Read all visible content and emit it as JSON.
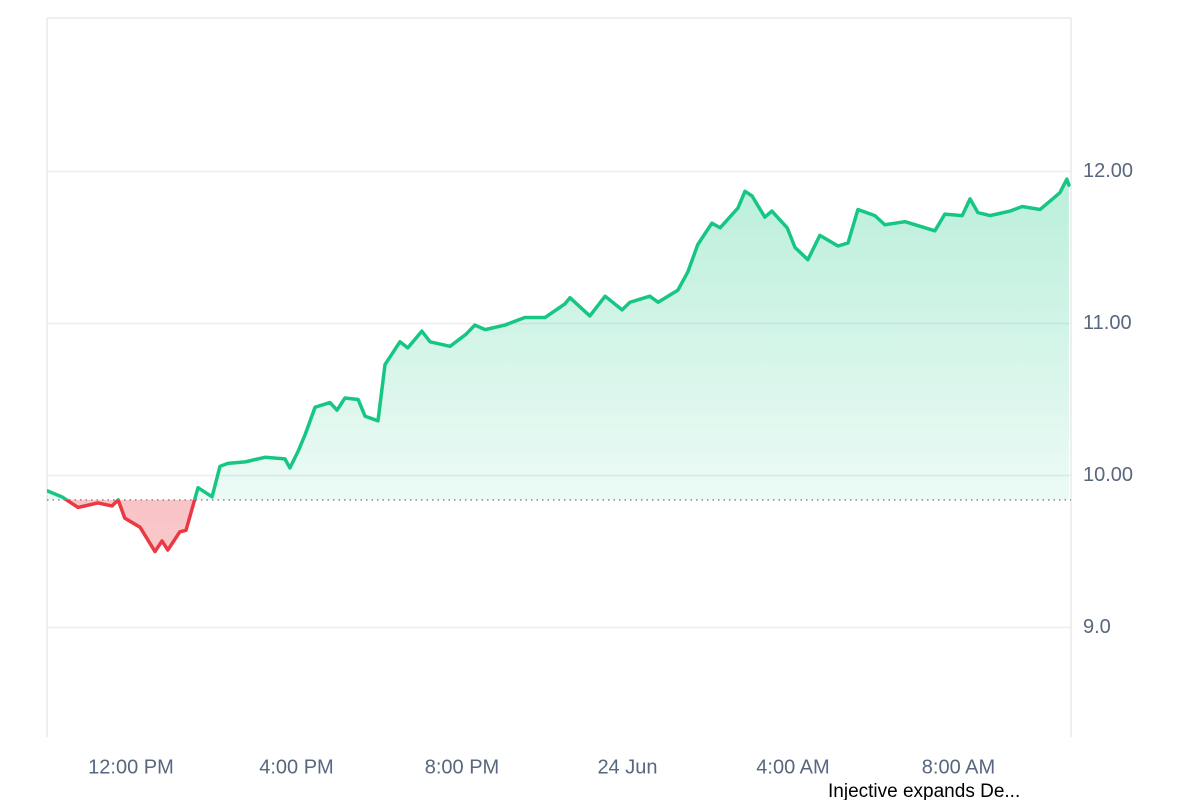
{
  "chart_data": {
    "type": "line",
    "x": [
      9.97,
      10.33,
      10.72,
      11.2,
      11.54,
      11.69,
      11.85,
      12.22,
      12.58,
      12.75,
      12.89,
      13.18,
      13.33,
      13.62,
      13.96,
      14.15,
      14.34,
      14.76,
      15.24,
      15.72,
      15.84,
      16.04,
      16.21,
      16.45,
      16.81,
      16.98,
      17.17,
      17.49,
      17.66,
      17.97,
      18.14,
      18.5,
      18.69,
      19.03,
      19.23,
      19.71,
      20.1,
      20.31,
      20.56,
      21.04,
      21.52,
      22.01,
      22.49,
      22.61,
      23.09,
      23.46,
      23.87,
      24.06,
      24.54,
      24.74,
      25.22,
      25.46,
      25.7,
      26.04,
      26.24,
      26.67,
      26.84,
      27.01,
      27.32,
      27.49,
      27.86,
      28.05,
      28.36,
      28.65,
      29.09,
      29.33,
      29.57,
      29.98,
      30.22,
      30.71,
      31.43,
      31.67,
      32.09,
      32.28,
      32.47,
      32.76,
      33.25,
      33.54,
      33.97,
      34.45,
      34.62,
      34.67
    ],
    "series": [
      {
        "values": [
          9.9,
          9.86,
          9.79,
          9.82,
          9.8,
          9.84,
          9.72,
          9.66,
          9.5,
          9.57,
          9.51,
          9.63,
          9.64,
          9.92,
          9.86,
          10.06,
          10.08,
          10.09,
          10.12,
          10.11,
          10.05,
          10.16,
          10.27,
          10.45,
          10.48,
          10.43,
          10.51,
          10.5,
          10.39,
          10.36,
          10.73,
          10.88,
          10.84,
          10.95,
          10.88,
          10.85,
          10.93,
          10.99,
          10.96,
          10.99,
          11.04,
          11.04,
          11.13,
          11.17,
          11.05,
          11.18,
          11.09,
          11.14,
          11.18,
          11.14,
          11.22,
          11.34,
          11.52,
          11.66,
          11.63,
          11.76,
          11.87,
          11.84,
          11.7,
          11.74,
          11.63,
          11.5,
          11.42,
          11.58,
          11.51,
          11.53,
          11.75,
          11.71,
          11.65,
          11.67,
          11.61,
          11.72,
          11.71,
          11.82,
          11.73,
          11.71,
          11.74,
          11.77,
          11.75,
          11.86,
          11.95,
          11.91
        ]
      }
    ],
    "baseline": 9.84,
    "up_color": "#16c784",
    "down_color": "#ea3943",
    "xlim": [
      9.97,
      34.72
    ],
    "xticks": [
      {
        "value": 12,
        "label": "12:00 PM"
      },
      {
        "value": 16,
        "label": "4:00 PM"
      },
      {
        "value": 20,
        "label": "8:00 PM"
      },
      {
        "value": 24,
        "label": "24 Jun"
      },
      {
        "value": 28,
        "label": "4:00 AM"
      },
      {
        "value": 32,
        "label": "8:00 AM"
      }
    ],
    "ylim": [
      8.28,
      13.01
    ],
    "yticks": [
      {
        "value": 9,
        "label": "9.0"
      },
      {
        "value": 10,
        "label": "10.00"
      },
      {
        "value": 11,
        "label": "11.00"
      },
      {
        "value": 12,
        "label": "12.00"
      }
    ],
    "grid": true,
    "annotation": "Injective expands De..."
  }
}
